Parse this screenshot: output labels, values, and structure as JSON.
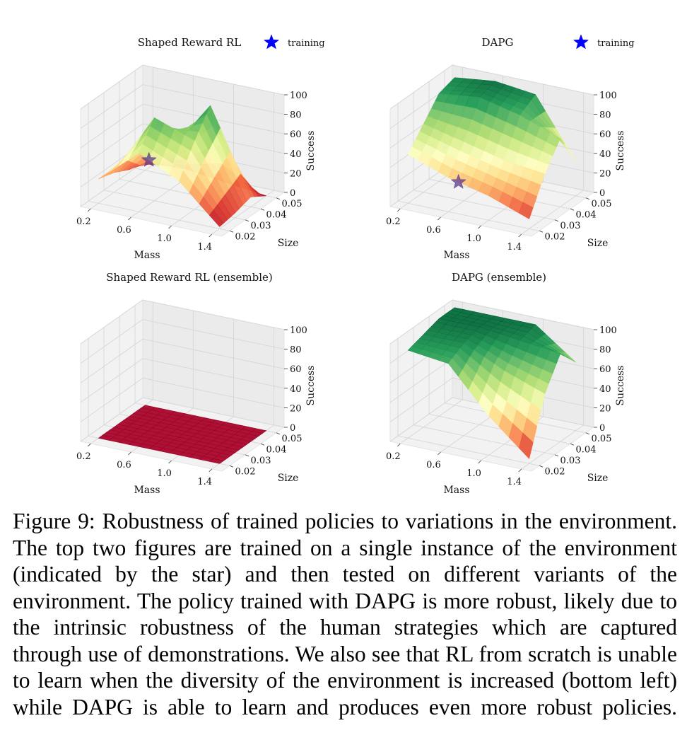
{
  "figure": {
    "legend_label": "training",
    "caption": "Figure 9: Robustness of trained policies to variations in the environment. The top two figures are trained on a single instance of the environment (indicated by the star) and then tested on different variants of the environment. The policy trained with DAPG is more robust, likely due to the intrinsic robustness of the human strategies which are captured through use of demonstrations. We also see that RL from scratch is unable to learn when the diversity of the environment is increased (bottom left) while DAPG is able to learn and produces even more robust policies."
  },
  "chart_data": [
    {
      "type": "surface3d",
      "title": "Shaped Reward RL",
      "xlabel": "Mass",
      "ylabel": "Size",
      "zlabel": "Success",
      "xticks": [
        "0.2",
        "0.6",
        "1.0",
        "1.4"
      ],
      "yticks": [
        "0.02",
        "0.03",
        "0.04",
        "0.05"
      ],
      "zticks": [
        "0",
        "20",
        "40",
        "60",
        "80",
        "100"
      ],
      "xlim": [
        0.1,
        1.5
      ],
      "ylim": [
        0.015,
        0.055
      ],
      "zlim": [
        0,
        100
      ],
      "legend": {
        "label": "training",
        "marker": "star",
        "color": "#0000ff",
        "position": "top-right"
      },
      "training_point": {
        "mass": 0.7,
        "size": 0.02
      },
      "mass_values": [
        0.2,
        0.6,
        1.0,
        1.4
      ],
      "size_values": [
        0.02,
        0.03,
        0.04,
        0.05
      ],
      "success": [
        [
          25,
          20,
          12,
          8
        ],
        [
          60,
          85,
          40,
          10
        ],
        [
          40,
          70,
          95,
          5
        ],
        [
          2,
          5,
          10,
          0
        ]
      ],
      "colormap": "RdYlGn"
    },
    {
      "type": "surface3d",
      "title": "DAPG",
      "xlabel": "Mass",
      "ylabel": "Size",
      "zlabel": "Success",
      "xticks": [
        "0.2",
        "0.6",
        "1.0",
        "1.4"
      ],
      "yticks": [
        "0.02",
        "0.03",
        "0.04",
        "0.05"
      ],
      "zticks": [
        "0",
        "20",
        "40",
        "60",
        "80",
        "100"
      ],
      "xlim": [
        0.1,
        1.5
      ],
      "ylim": [
        0.015,
        0.055
      ],
      "zlim": [
        0,
        100
      ],
      "legend": {
        "label": "training",
        "marker": "star",
        "color": "#0000ff",
        "position": "top-right"
      },
      "training_point": {
        "mass": 0.7,
        "size": 0.02
      },
      "mass_values": [
        0.2,
        0.6,
        1.0,
        1.4
      ],
      "size_values": [
        0.02,
        0.03,
        0.04,
        0.05
      ],
      "success": [
        [
          50,
          70,
          90,
          95
        ],
        [
          35,
          60,
          95,
          100
        ],
        [
          25,
          50,
          85,
          95
        ],
        [
          10,
          45,
          70,
          35
        ]
      ],
      "colormap": "RdYlGn"
    },
    {
      "type": "surface3d",
      "title": "Shaped Reward RL (ensemble)",
      "xlabel": "Mass",
      "ylabel": "Size",
      "zlabel": "Success",
      "xticks": [
        "0.2",
        "0.6",
        "1.0",
        "1.4"
      ],
      "yticks": [
        "0.02",
        "0.03",
        "0.04",
        "0.05"
      ],
      "zticks": [
        "0",
        "20",
        "40",
        "60",
        "80",
        "100"
      ],
      "xlim": [
        0.1,
        1.5
      ],
      "ylim": [
        0.015,
        0.055
      ],
      "zlim": [
        0,
        100
      ],
      "mass_values": [
        0.2,
        0.6,
        1.0,
        1.4
      ],
      "size_values": [
        0.02,
        0.03,
        0.04,
        0.05
      ],
      "success": [
        [
          0,
          0,
          0,
          0
        ],
        [
          0,
          0,
          0,
          0
        ],
        [
          0,
          0,
          0,
          0
        ],
        [
          0,
          0,
          0,
          0
        ]
      ],
      "colormap": "RdYlGn"
    },
    {
      "type": "surface3d",
      "title": "DAPG (ensemble)",
      "xlabel": "Mass",
      "ylabel": "Size",
      "zlabel": "Success",
      "xticks": [
        "0.2",
        "0.6",
        "1.0",
        "1.4"
      ],
      "yticks": [
        "0.02",
        "0.03",
        "0.04",
        "0.05"
      ],
      "zticks": [
        "0",
        "20",
        "40",
        "60",
        "80",
        "100"
      ],
      "xlim": [
        0.1,
        1.5
      ],
      "ylim": [
        0.015,
        0.055
      ],
      "zlim": [
        0,
        100
      ],
      "mass_values": [
        0.2,
        0.6,
        1.0,
        1.4
      ],
      "size_values": [
        0.02,
        0.03,
        0.04,
        0.05
      ],
      "success": [
        [
          90,
          95,
          100,
          100
        ],
        [
          85,
          95,
          100,
          100
        ],
        [
          40,
          75,
          95,
          100
        ],
        [
          5,
          60,
          90,
          70
        ]
      ],
      "colormap": "RdYlGn"
    }
  ]
}
